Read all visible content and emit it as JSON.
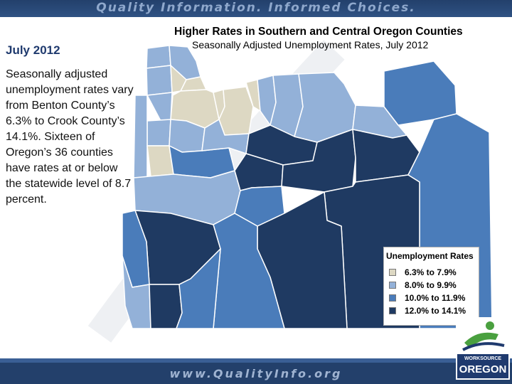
{
  "header": {
    "tagline": "Quality Information. Informed Choices."
  },
  "sidebar": {
    "heading": "July 2012",
    "paragraph": "Seasonally adjusted unemployment rates vary from Benton County’s 6.3% to Crook County’s 14.1%. Sixteen of Oregon’s 36 counties have rates at or below the statewide level of 8.7 percent."
  },
  "map": {
    "title": "Higher Rates in Southern and Central Oregon Counties",
    "subtitle": "Seasonally Adjusted Unemployment Rates, July 2012",
    "colors": {
      "c1": "#ddd8c3",
      "c2": "#93b1d8",
      "c3": "#4a7cba",
      "c4": "#1f3a62",
      "border": "#ffffff"
    }
  },
  "legend": {
    "title": "Unemployment Rates",
    "items": [
      {
        "label": "6.3% to 7.9%",
        "color": "#ddd8c3"
      },
      {
        "label": "8.0% to 9.9%",
        "color": "#93b1d8"
      },
      {
        "label": "10.0% to 11.9%",
        "color": "#4a7cba"
      },
      {
        "label": "12.0% to 14.1%",
        "color": "#1f3a62"
      }
    ]
  },
  "footer": {
    "url": "www.QualityInfo.org"
  },
  "logo": {
    "line1": "WORKSOURCE",
    "line2": "OREGON"
  }
}
